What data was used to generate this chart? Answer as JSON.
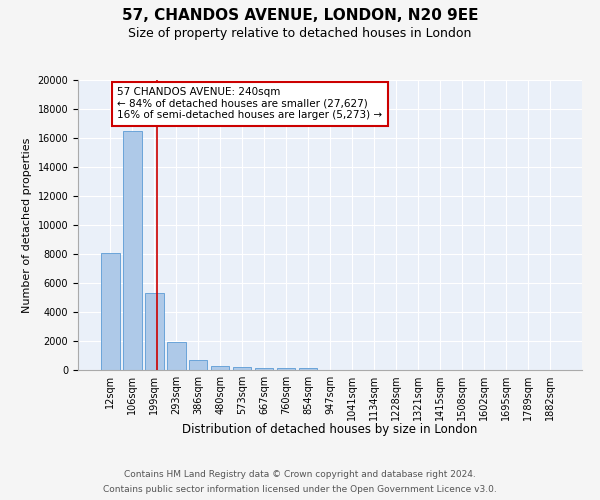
{
  "title": "57, CHANDOS AVENUE, LONDON, N20 9EE",
  "subtitle": "Size of property relative to detached houses in London",
  "xlabel": "Distribution of detached houses by size in London",
  "ylabel": "Number of detached properties",
  "bar_labels": [
    "12sqm",
    "106sqm",
    "199sqm",
    "293sqm",
    "386sqm",
    "480sqm",
    "573sqm",
    "667sqm",
    "760sqm",
    "854sqm",
    "947sqm",
    "1041sqm",
    "1134sqm",
    "1228sqm",
    "1321sqm",
    "1415sqm",
    "1508sqm",
    "1602sqm",
    "1695sqm",
    "1789sqm",
    "1882sqm"
  ],
  "bar_values": [
    8100,
    16500,
    5300,
    1900,
    700,
    300,
    220,
    170,
    155,
    130,
    0,
    0,
    0,
    0,
    0,
    0,
    0,
    0,
    0,
    0,
    0
  ],
  "bar_color": "#aec9e8",
  "bar_edgecolor": "#5b9bd5",
  "background_color": "#eaf0f9",
  "grid_color": "#ffffff",
  "fig_background": "#f5f5f5",
  "ylim": [
    0,
    20000
  ],
  "yticks": [
    0,
    2000,
    4000,
    6000,
    8000,
    10000,
    12000,
    14000,
    16000,
    18000,
    20000
  ],
  "red_line_x": 2.15,
  "annotation_line1": "57 CHANDOS AVENUE: 240sqm",
  "annotation_line2": "← 84% of detached houses are smaller (27,627)",
  "annotation_line3": "16% of semi-detached houses are larger (5,273) →",
  "annotation_box_color": "#cc0000",
  "footer_line1": "Contains HM Land Registry data © Crown copyright and database right 2024.",
  "footer_line2": "Contains public sector information licensed under the Open Government Licence v3.0.",
  "title_fontsize": 11,
  "subtitle_fontsize": 9,
  "annotation_fontsize": 7.5,
  "footer_fontsize": 6.5,
  "ylabel_fontsize": 8,
  "xlabel_fontsize": 8.5,
  "tick_fontsize": 7
}
